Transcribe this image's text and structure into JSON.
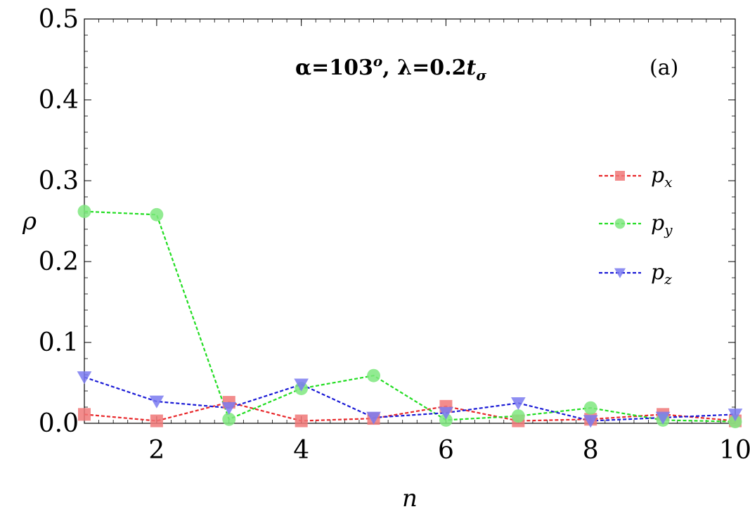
{
  "chart_data": {
    "type": "line",
    "title": "",
    "xlabel": "n",
    "ylabel": "ρ",
    "xlim": [
      1,
      10
    ],
    "ylim": [
      0,
      0.5
    ],
    "xticks": [
      2,
      4,
      6,
      8,
      10
    ],
    "yticks": [
      0.0,
      0.1,
      0.2,
      0.3,
      0.4,
      0.5
    ],
    "xtick_labels": [
      "2",
      "4",
      "6",
      "8",
      "10"
    ],
    "ytick_labels": [
      "0.0",
      "0.1",
      "0.2",
      "0.3",
      "0.4",
      "0.5"
    ],
    "grid": false,
    "legend_position": "right",
    "annotations": {
      "params": {
        "alpha": "α=103",
        "alpha_sup": "o",
        "sep": ", ",
        "lambda": "λ=0.2",
        "t": "t",
        "t_sub": "σ"
      },
      "panel": "(a)"
    },
    "x": [
      1,
      2,
      3,
      4,
      5,
      6,
      7,
      8,
      9,
      10
    ],
    "series": [
      {
        "name": "p",
        "sub": "x",
        "color": "#e8272a",
        "marker_color": "#f07878",
        "marker": "square",
        "values": [
          0.011,
          0.003,
          0.026,
          0.003,
          0.006,
          0.021,
          0.003,
          0.005,
          0.011,
          0.003
        ]
      },
      {
        "name": "p",
        "sub": "y",
        "color": "#22dd22",
        "marker_color": "#7fe87f",
        "marker": "circle",
        "values": [
          0.262,
          0.258,
          0.005,
          0.043,
          0.059,
          0.004,
          0.009,
          0.019,
          0.004,
          0.002
        ]
      },
      {
        "name": "p",
        "sub": "z",
        "color": "#1a1ad6",
        "marker_color": "#7a7af0",
        "marker": "triangle-down",
        "values": [
          0.057,
          0.027,
          0.019,
          0.048,
          0.007,
          0.013,
          0.025,
          0.003,
          0.007,
          0.011
        ]
      }
    ]
  }
}
